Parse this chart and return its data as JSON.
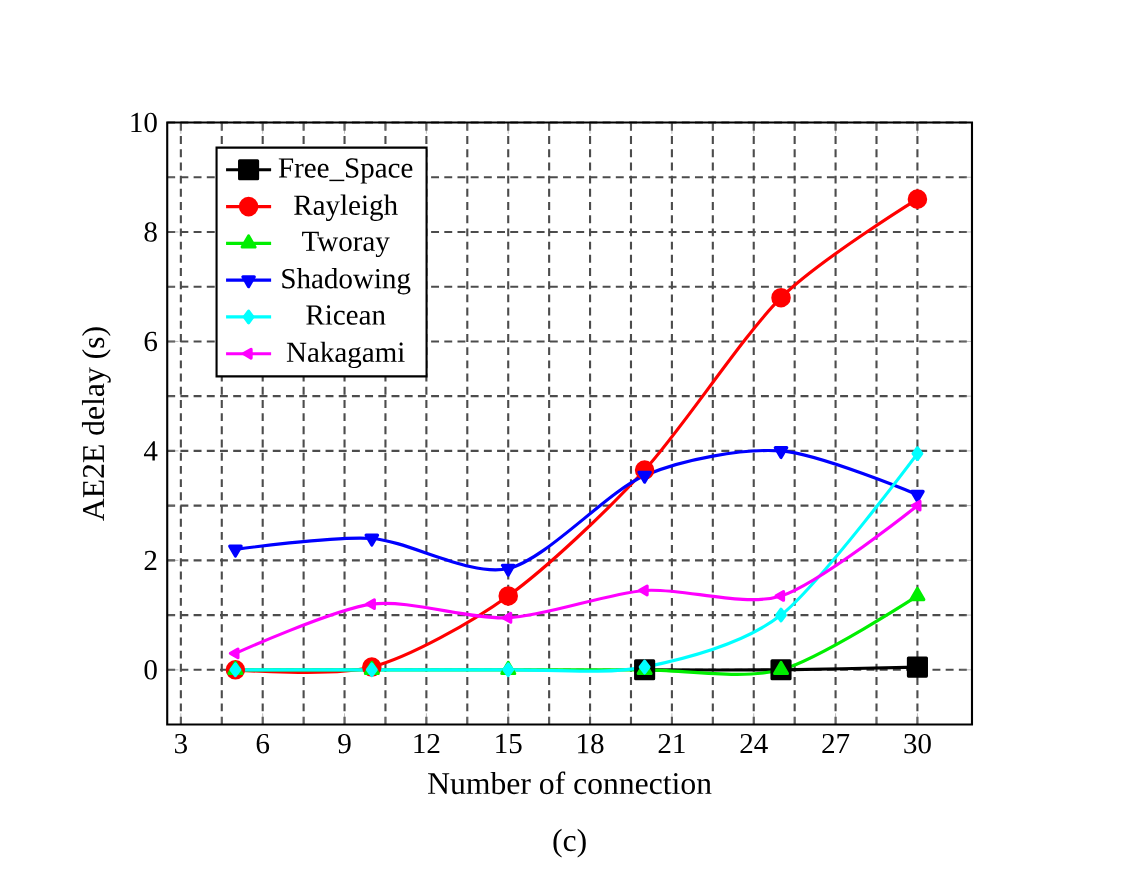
{
  "chart_data": {
    "type": "line",
    "xlabel": "Number of connection",
    "ylabel": "AE2E delay (s)",
    "annotations": [
      "(c)"
    ],
    "x": [
      5,
      10,
      15,
      20,
      25,
      30
    ],
    "xlim": [
      2.5,
      32
    ],
    "xticks": [
      3,
      6,
      9,
      12,
      15,
      18,
      21,
      24,
      27,
      30
    ],
    "ylim": [
      -1,
      10
    ],
    "yticks": [
      0,
      2,
      4,
      6,
      8,
      10
    ],
    "grid": true,
    "legend": "top left",
    "line_style": "solid",
    "series": [
      {
        "name": "Free_Space",
        "color": "#000000",
        "marker": "square",
        "values": [
          null,
          null,
          null,
          0,
          0,
          0.05
        ]
      },
      {
        "name": "Rayleigh",
        "color": "#ff0000",
        "marker": "circle",
        "values": [
          0,
          0.05,
          1.35,
          3.65,
          6.8,
          8.6
        ]
      },
      {
        "name": "Tworay",
        "color": "#00ee00",
        "marker": "triangle",
        "values": [
          0,
          0,
          0,
          0,
          0,
          1.35
        ]
      },
      {
        "name": "Shadowing",
        "color": "#0000ff",
        "marker": "triangle down",
        "values": [
          2.2,
          2.4,
          1.85,
          3.55,
          4.0,
          3.2
        ]
      },
      {
        "name": "Ricean",
        "color": "#00ffff",
        "marker": "diamond",
        "values": [
          0,
          0,
          0,
          0.05,
          1.0,
          3.95
        ]
      },
      {
        "name": "Nakagami",
        "color": "#ff00ff",
        "marker": "triangle left",
        "values": [
          0.3,
          1.2,
          0.95,
          1.45,
          1.35,
          3.0
        ]
      }
    ]
  }
}
